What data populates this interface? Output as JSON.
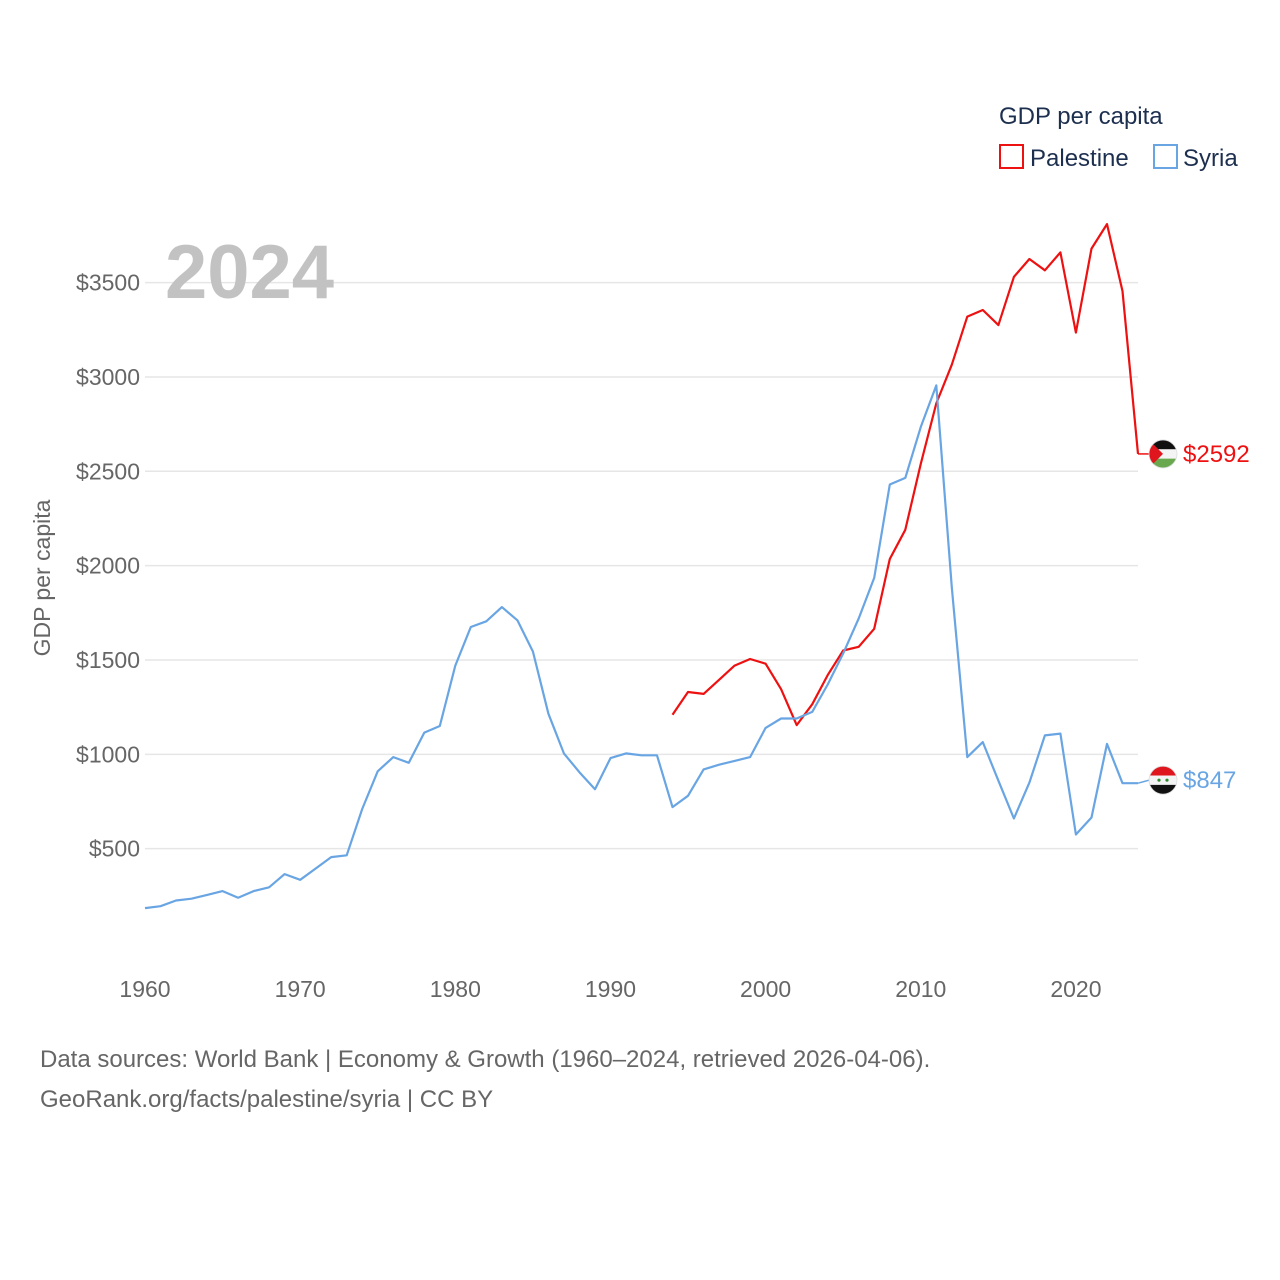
{
  "chart_data": {
    "type": "line",
    "title": "GDP per capita",
    "year_label": "2024",
    "ylabel": "GDP per capita",
    "xlim": [
      1960,
      2024
    ],
    "ylim": [
      0,
      3800
    ],
    "x_ticks": [
      1960,
      1970,
      1980,
      1990,
      2000,
      2010,
      2020
    ],
    "x_tick_labels": [
      "1960",
      "1970",
      "1980",
      "1990",
      "2000",
      "2010",
      "2020"
    ],
    "y_ticks": [
      500,
      1000,
      1500,
      2000,
      2500,
      3000,
      3500
    ],
    "y_tick_labels": [
      "$500",
      "$1000",
      "$1500",
      "$2000",
      "$2500",
      "$3000",
      "$3500"
    ],
    "legend_position": "top-right",
    "series": [
      {
        "name": "Palestine",
        "color": "#ee1111",
        "end_label": "$2592",
        "flag": "palestine-flag",
        "x": [
          1994,
          1995,
          1996,
          1997,
          1998,
          1999,
          2000,
          2001,
          2002,
          2003,
          2004,
          2005,
          2006,
          2007,
          2008,
          2009,
          2010,
          2011,
          2012,
          2013,
          2014,
          2015,
          2016,
          2017,
          2018,
          2019,
          2020,
          2021,
          2022,
          2023,
          2024
        ],
        "values": [
          1210,
          1330,
          1320,
          1395,
          1470,
          1505,
          1480,
          1345,
          1155,
          1265,
          1420,
          1550,
          1570,
          1665,
          2035,
          2190,
          2540,
          2860,
          3065,
          3320,
          3355,
          3275,
          3530,
          3625,
          3565,
          3660,
          3235,
          3680,
          3810,
          3455,
          2592
        ]
      },
      {
        "name": "Syria",
        "color": "#69a5e3",
        "end_label": "$847",
        "flag": "syria-flag",
        "x": [
          1960,
          1961,
          1962,
          1963,
          1964,
          1965,
          1966,
          1967,
          1968,
          1969,
          1970,
          1971,
          1972,
          1973,
          1974,
          1975,
          1976,
          1977,
          1978,
          1979,
          1980,
          1981,
          1982,
          1983,
          1984,
          1985,
          1986,
          1987,
          1988,
          1989,
          1990,
          1991,
          1992,
          1993,
          1994,
          1995,
          1996,
          1997,
          1998,
          1999,
          2000,
          2001,
          2002,
          2003,
          2004,
          2005,
          2006,
          2007,
          2008,
          2009,
          2010,
          2011,
          2012,
          2013,
          2014,
          2015,
          2016,
          2017,
          2018,
          2019,
          2020,
          2021,
          2022,
          2023,
          2024
        ],
        "values": [
          185,
          195,
          225,
          235,
          255,
          275,
          240,
          275,
          295,
          365,
          335,
          395,
          455,
          465,
          710,
          910,
          985,
          955,
          1115,
          1150,
          1470,
          1675,
          1705,
          1780,
          1710,
          1545,
          1215,
          1005,
          905,
          815,
          980,
          1005,
          995,
          995,
          720,
          780,
          920,
          945,
          965,
          985,
          1140,
          1190,
          1190,
          1225,
          1370,
          1535,
          1720,
          1935,
          2430,
          2465,
          2735,
          2955,
          1885,
          985,
          1065,
          860,
          660,
          850,
          1100,
          1110,
          575,
          665,
          1055,
          847,
          847
        ]
      }
    ]
  },
  "source_line1": "Data sources: World Bank | Economy & Growth (1960–2024, retrieved 2026-04-06).",
  "source_line2": "GeoRank.org/facts/palestine/syria | CC BY"
}
